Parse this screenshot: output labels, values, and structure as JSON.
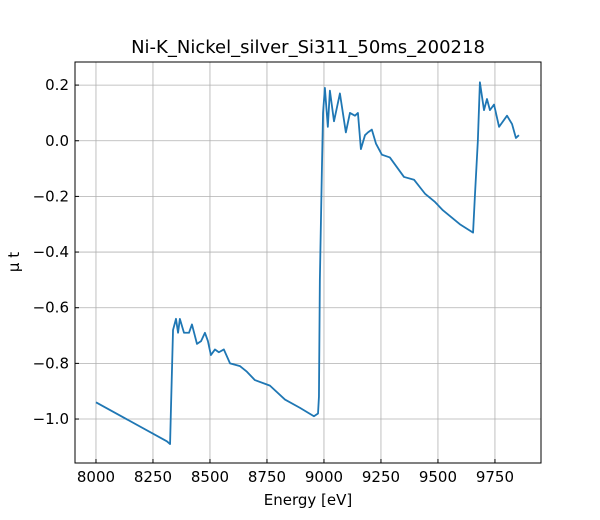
{
  "chart_data": {
    "type": "line",
    "title": "Ni-K_Nickel_silver_Si311_50ms_200218",
    "xlabel": "Energy [eV]",
    "ylabel": "μ t",
    "xlim": [
      7908,
      9952
    ],
    "ylim": [
      -1.158,
      0.283
    ],
    "xticks": [
      8000,
      8250,
      8500,
      8750,
      9000,
      9250,
      9500,
      9750
    ],
    "yticks": [
      {
        "value": -1.0,
        "label": "−1.0"
      },
      {
        "value": -0.8,
        "label": "−0.8"
      },
      {
        "value": -0.6,
        "label": "−0.6"
      },
      {
        "value": -0.4,
        "label": "−0.4"
      },
      {
        "value": -0.2,
        "label": "−0.2"
      },
      {
        "value": 0,
        "label": "0.0"
      },
      0.2
    ],
    "grid": true,
    "x": [
      8000,
      8311,
      8325,
      8329,
      8338,
      8351,
      8360,
      8368,
      8386,
      8408,
      8421,
      8443,
      8461,
      8478,
      8491,
      8504,
      8522,
      8539,
      8561,
      8588,
      8632,
      8662,
      8697,
      8763,
      8829,
      8895,
      8956,
      8974,
      8978,
      8982,
      8991,
      8996,
      9004,
      9017,
      9026,
      9044,
      9070,
      9096,
      9114,
      9136,
      9149,
      9162,
      9180,
      9193,
      9210,
      9228,
      9254,
      9289,
      9351,
      9395,
      9443,
      9487,
      9522,
      9596,
      9654,
      9662,
      9675,
      9684,
      9702,
      9715,
      9728,
      9746,
      9768,
      9803,
      9825,
      9842,
      9855
    ],
    "series": [
      {
        "name": "mu",
        "color": "#1f77b4",
        "values": [
          -0.94,
          -1.08,
          -1.09,
          -0.96,
          -0.68,
          -0.64,
          -0.69,
          -0.64,
          -0.69,
          -0.69,
          -0.66,
          -0.73,
          -0.72,
          -0.69,
          -0.72,
          -0.77,
          -0.75,
          -0.76,
          -0.75,
          -0.8,
          -0.81,
          -0.83,
          -0.86,
          -0.88,
          -0.93,
          -0.96,
          -0.99,
          -0.98,
          -0.92,
          -0.5,
          -0.1,
          0.1,
          0.19,
          0.05,
          0.18,
          0.07,
          0.17,
          0.03,
          0.1,
          0.09,
          0.1,
          -0.03,
          0.02,
          0.03,
          0.04,
          -0.01,
          -0.05,
          -0.06,
          -0.13,
          -0.14,
          -0.19,
          -0.22,
          -0.25,
          -0.3,
          -0.33,
          -0.2,
          0.0,
          0.21,
          0.11,
          0.15,
          0.11,
          0.13,
          0.05,
          0.09,
          0.06,
          0.01,
          0.02
        ]
      }
    ]
  }
}
